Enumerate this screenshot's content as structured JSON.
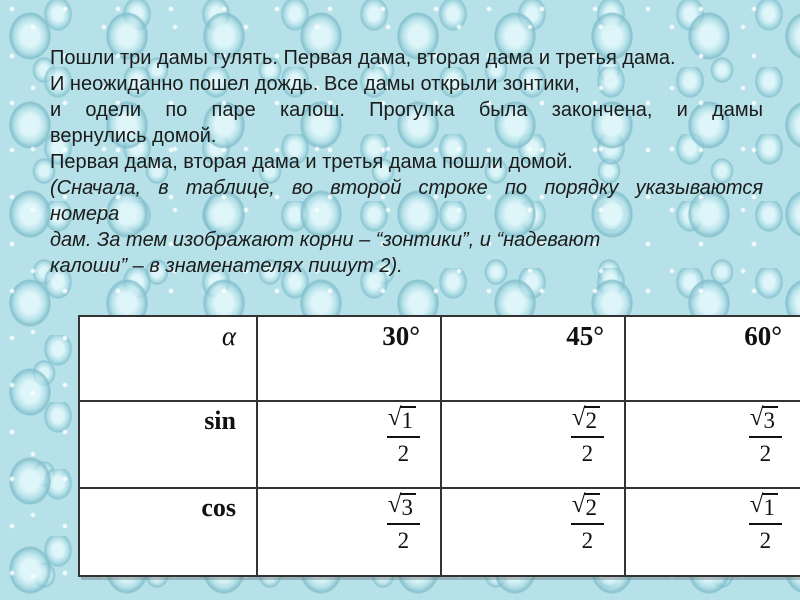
{
  "slide": {
    "story_lines": [
      "Пошли три дамы гулять. Первая дама, вторая дама и третья дама.",
      "И неожиданно пошел дождь. Все дамы открыли зонтики,",
      "и одели по паре калош. Прогулка была закончена, и дамы",
      "вернулись домой.",
      "Первая дама, вторая дама и третья дама пошли домой.",
      "(Сначала, в таблице, во второй строке по порядку указываются",
      "номера",
      "дам. За тем изображают корни – “зонтики”, и “надевают",
      "калоши” – в знаменателях пишут 2)."
    ],
    "table": {
      "radical": "√",
      "col_headers": {
        "angle_symbol": "α",
        "angles": [
          "30°",
          "45°",
          "60°"
        ]
      },
      "rows": [
        {
          "label": "sin",
          "cells": [
            {
              "radicand": "1",
              "denominator": "2"
            },
            {
              "radicand": "2",
              "denominator": "2"
            },
            {
              "radicand": "3",
              "denominator": "2"
            }
          ]
        },
        {
          "label": "cos",
          "cells": [
            {
              "radicand": "3",
              "denominator": "2"
            },
            {
              "radicand": "2",
              "denominator": "2"
            },
            {
              "radicand": "1",
              "denominator": "2"
            }
          ]
        }
      ]
    },
    "colors": {
      "background_base": "#b6e1e8",
      "droplet_shade": "#7fc0cf",
      "droplet_highlight": "#e9f9fb",
      "table_background": "#ffffff",
      "table_border": "#333333",
      "text": "#1b1b1b"
    }
  }
}
